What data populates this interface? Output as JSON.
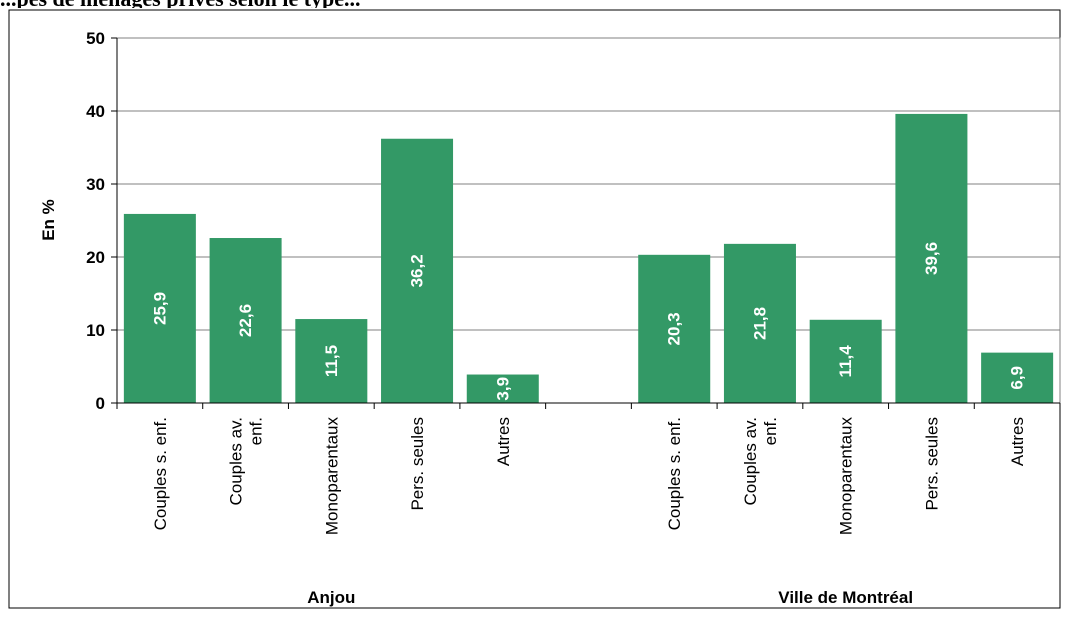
{
  "header": {
    "title_fragment": "...pes de ménages privés selon le type..."
  },
  "chart_data": {
    "type": "bar",
    "ylabel": "En %",
    "ylim": [
      0,
      50
    ],
    "yticks": [
      0,
      10,
      20,
      30,
      40,
      50
    ],
    "grid": true,
    "bar_color": "#339966",
    "groups": [
      {
        "name": "Anjou",
        "categories": [
          "Couples s. enf.",
          "Couples av. enf.",
          "Monoparentaux",
          "Pers. seules",
          "Autres"
        ],
        "values": [
          25.9,
          22.6,
          11.5,
          36.2,
          3.9
        ],
        "labels": [
          "25,9",
          "22,6",
          "11,5",
          "36,2",
          "3,9"
        ]
      },
      {
        "name": "Ville de Montréal",
        "categories": [
          "Couples s. enf.",
          "Couples av. enf.",
          "Monoparentaux",
          "Pers. seules",
          "Autres"
        ],
        "values": [
          20.3,
          21.8,
          11.4,
          39.6,
          6.9
        ],
        "labels": [
          "20,3",
          "21,8",
          "11,4",
          "39,6",
          "6,9"
        ]
      }
    ]
  }
}
